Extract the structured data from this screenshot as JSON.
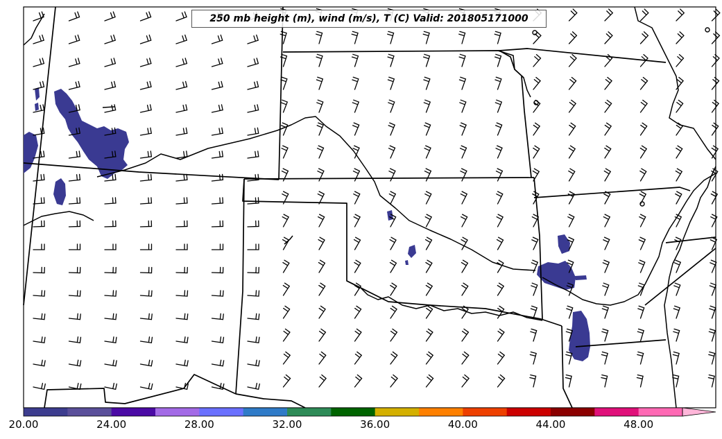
{
  "title": "250 mb height (m), wind (m/s), T (C) Valid: 201805171000",
  "colorbar": {
    "min": 20,
    "max": 52,
    "step": 2,
    "extend": "max",
    "tick_labels": [
      "20.00",
      "24.00",
      "28.00",
      "32.00",
      "36.00",
      "40.00",
      "44.00",
      "48.00"
    ],
    "colors": [
      "#3d3d8f",
      "#5a4f9a",
      "#4b0aa5",
      "#a36ae6",
      "#6a70ff",
      "#2f7bc8",
      "#2e8b57",
      "#006400",
      "#d4b000",
      "#ff8000",
      "#ee4000",
      "#cc0000",
      "#8b0000",
      "#e0107a",
      "#ff69b4",
      "#ffb6d9"
    ]
  },
  "fill_color": "#3a3a92"
}
